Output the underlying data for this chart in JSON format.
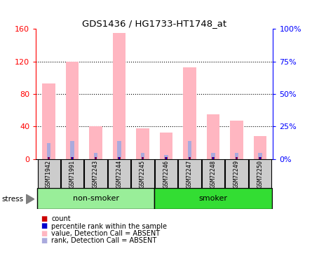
{
  "title": "GDS1436 / HG1733-HT1748_at",
  "samples": [
    "GSM71942",
    "GSM71991",
    "GSM72243",
    "GSM72244",
    "GSM72245",
    "GSM72246",
    "GSM72247",
    "GSM72248",
    "GSM72249",
    "GSM72250"
  ],
  "pink_values": [
    93,
    120,
    40,
    155,
    38,
    33,
    113,
    55,
    47,
    28
  ],
  "blue_rank_values": [
    20,
    22,
    8,
    22,
    8,
    5,
    22,
    8,
    8,
    8
  ],
  "ylim_left": [
    0,
    160
  ],
  "ylim_right": [
    0,
    100
  ],
  "yticks_left": [
    0,
    40,
    80,
    120,
    160
  ],
  "yticks_right": [
    0,
    25,
    50,
    75,
    100
  ],
  "ytick_labels_right": [
    "0%",
    "25%",
    "50%",
    "75%",
    "100%"
  ],
  "non_smoker_color": "#99EE99",
  "smoker_color": "#33DD33",
  "pink_color": "#FFB6C1",
  "blue_color": "#AAAADD",
  "red_color": "#CC0000",
  "dark_blue_color": "#0000CC",
  "label_bg_color": "#CCCCCC",
  "legend_items": [
    "count",
    "percentile rank within the sample",
    "value, Detection Call = ABSENT",
    "rank, Detection Call = ABSENT"
  ],
  "legend_colors": [
    "#CC0000",
    "#0000CC",
    "#FFB6C1",
    "#AAAADD"
  ],
  "bar_width": 0.55
}
